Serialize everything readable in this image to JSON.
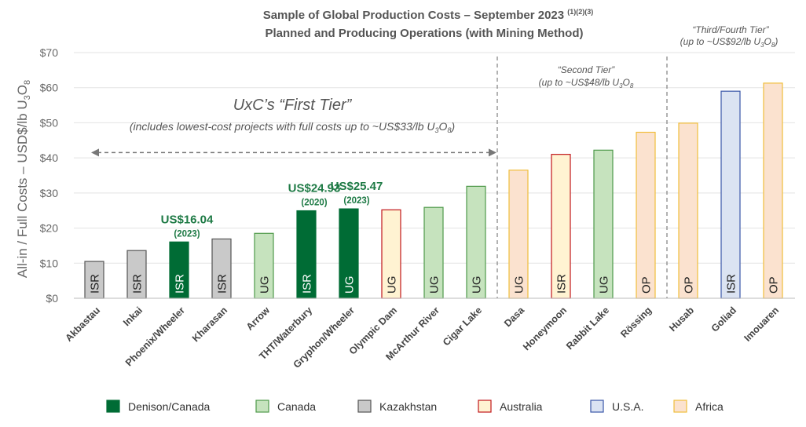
{
  "chart_data": {
    "type": "bar",
    "title_line1": "Sample of Global Production Costs – September 2023",
    "title_footnotes": "(1)(2)(3)",
    "title_line2": "Planned and Producing Operations (with Mining Method)",
    "ylabel_main": "All-in / Full Costs – USD$/lb U",
    "ylabel_sub3": "3",
    "ylabel_O": "O",
    "ylabel_sub8": "8",
    "ylim": [
      0,
      70
    ],
    "yticks": [
      0,
      10,
      20,
      30,
      40,
      50,
      60,
      70
    ],
    "ytick_labels": [
      "$0",
      "$10",
      "$20",
      "$30",
      "$40",
      "$50",
      "$60",
      "$70"
    ],
    "grid": "horizontal",
    "legend_placement": "bottom",
    "categories": [
      "Akbastau",
      "Inkai",
      "Phoenix/Wheeler",
      "Kharasan",
      "Arrow",
      "THT/Waterbury",
      "Gryphon/Wheeler",
      "Olympic Dam",
      "McArthur River",
      "Cigar Lake",
      "Dasa",
      "Honeymoon",
      "Rabbit Lake",
      "Rössing",
      "Husab",
      "Goliad",
      "Imouaren"
    ],
    "values": [
      10.5,
      13.6,
      16.04,
      16.9,
      18.5,
      24.93,
      25.47,
      25.2,
      25.9,
      31.9,
      36.5,
      41.0,
      42.2,
      47.3,
      49.9,
      59.0,
      61.3
    ],
    "methods": [
      "ISR",
      "ISR",
      "ISR",
      "ISR",
      "UG",
      "ISR",
      "UG",
      "UG",
      "UG",
      "UG",
      "UG",
      "ISR",
      "UG",
      "OP",
      "OP",
      "ISR",
      "OP"
    ],
    "groups": [
      "Kazakhstan",
      "Kazakhstan",
      "Denison/Canada",
      "Kazakhstan",
      "Canada",
      "Denison/Canada",
      "Denison/Canada",
      "Australia",
      "Canada",
      "Canada",
      "Africa",
      "Australia",
      "Canada",
      "Africa",
      "Africa",
      "U.S.A.",
      "Africa"
    ],
    "callouts": [
      {
        "index": 2,
        "value_label": "US$16.04",
        "year_label": "(2023)"
      },
      {
        "index": 5,
        "value_label": "US$24.93",
        "year_label": "(2020)"
      },
      {
        "index": 6,
        "value_label": "US$25.47",
        "year_label": "(2023)"
      }
    ],
    "tiers": {
      "first": {
        "title": "UxC’s “First Tier”",
        "subtitle": "(includes lowest-cost projects with full costs up to ~US$33/lb U",
        "sub3": "3",
        "O": "O",
        "sub8": "8",
        "close": ")",
        "arrow_level": 41.5
      },
      "second": {
        "line1": "“Second Tier”",
        "line2": "(up to ~US$48/lb U",
        "sub3": "3",
        "O": "O",
        "sub8": "8",
        "close": ""
      },
      "third": {
        "line1": "“Third/Fourth Tier”",
        "line2": "(up to ~US$92/lb U",
        "sub3": "3",
        "O": "O",
        "sub8": "8",
        "close": ")"
      }
    },
    "legend": [
      {
        "name": "Denison/Canada",
        "fill": "#006c35",
        "stroke": "#006c35"
      },
      {
        "name": "Canada",
        "fill": "#c6e3be",
        "stroke": "#4f9a4b"
      },
      {
        "name": "Kazakhstan",
        "fill": "#c9c9c9",
        "stroke": "#555555"
      },
      {
        "name": "Australia",
        "fill": "#fff3d2",
        "stroke": "#c0161a"
      },
      {
        "name": "U.S.A.",
        "fill": "#dbe3f2",
        "stroke": "#3a57a8"
      },
      {
        "name": "Africa",
        "fill": "#fbe2cf",
        "stroke": "#f1be3b"
      }
    ]
  }
}
